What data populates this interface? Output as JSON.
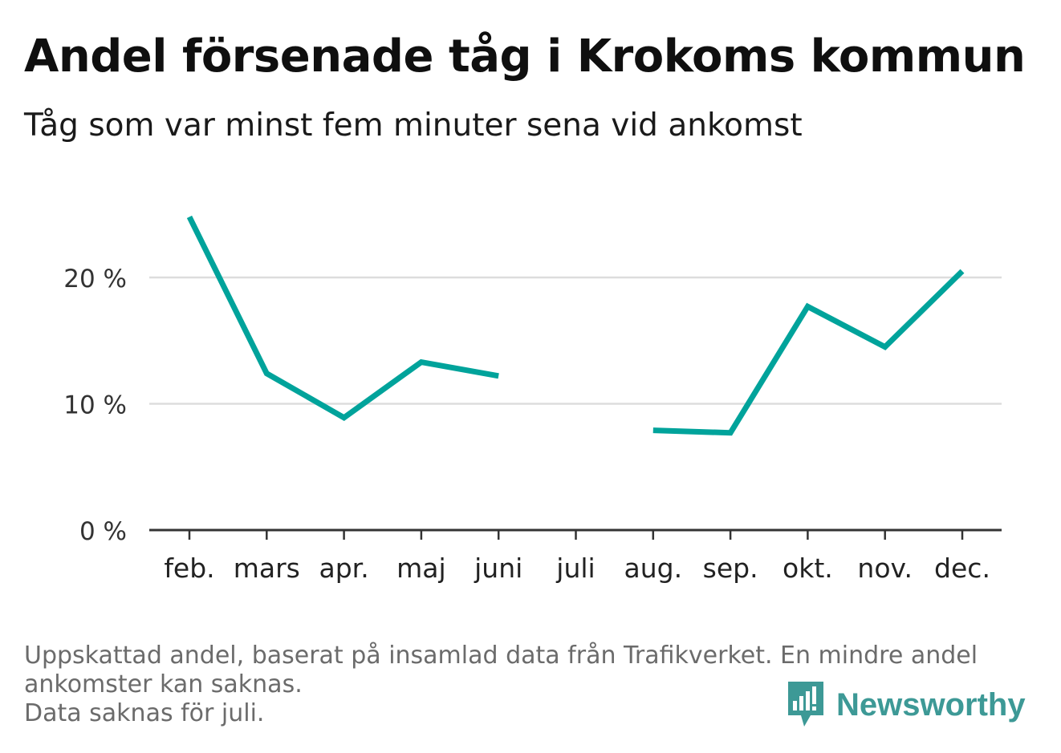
{
  "header": {
    "title": "Andel försenade tåg i Krokoms kommun",
    "subtitle": "Tåg som var minst fem minuter sena vid ankomst"
  },
  "footer": {
    "notes": [
      "Uppskattad andel, baserat på insamlad data från Trafikverket. En mindre andel",
      "ankomster kan saknas.",
      "Data saknas för juli."
    ],
    "brand": "Newsworthy",
    "brand_icon": "newsworthy-logo-icon"
  },
  "colors": {
    "line": "#00a39b",
    "grid": "#dddddd",
    "axis": "#333333",
    "brand": "#3d9996"
  },
  "chart_data": {
    "type": "line",
    "categories": [
      "feb.",
      "mars",
      "apr.",
      "maj",
      "juni",
      "juli",
      "aug.",
      "sep.",
      "okt.",
      "nov.",
      "dec."
    ],
    "series": [
      {
        "values": [
          24.8,
          12.4,
          8.9,
          13.3,
          12.2,
          null,
          7.9,
          7.7,
          17.7,
          14.5,
          20.5
        ]
      }
    ],
    "ylim": [
      0,
      25
    ],
    "yticks": [
      0,
      10,
      20
    ],
    "ytick_labels": [
      "0 %",
      "10 %",
      "20 %"
    ],
    "grid": true,
    "xlabel": "",
    "ylabel": ""
  }
}
